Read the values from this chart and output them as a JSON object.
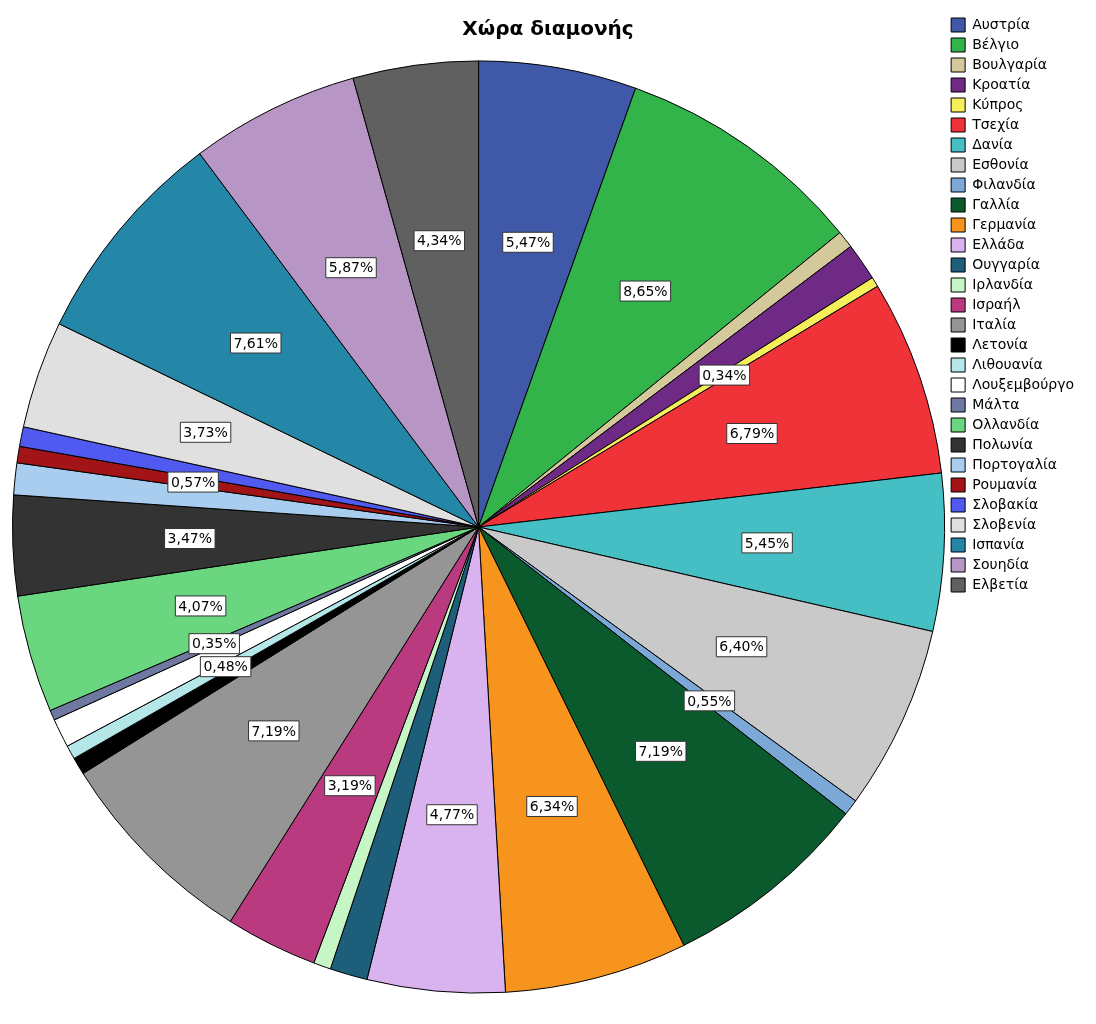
{
  "chart_data": {
    "type": "pie",
    "title": "Χώρα διαμονής",
    "categories": [
      "Αυστρία",
      "Βέλγιο",
      "Βουλγαρία",
      "Κροατία",
      "Κύπρος",
      "Τσεχία",
      "Δανία",
      "Εσθονία",
      "Φιλανδία",
      "Γαλλία",
      "Γερμανία",
      "Ελλάδα",
      "Ουγγαρία",
      "Ιρλανδία",
      "Ισραήλ",
      "Ιταλία",
      "Λετονία",
      "Λιθουανία",
      "Λουξεμβούργο",
      "Μάλτα",
      "Ολλανδία",
      "Πολωνία",
      "Πορτογαλία",
      "Ρουμανία",
      "Σλοβακία",
      "Σλοβενία",
      "Ισπανία",
      "Σουηδία",
      "Ελβετία"
    ],
    "values": [
      5.47,
      8.65,
      0.6,
      1.3,
      0.34,
      6.79,
      5.45,
      6.4,
      0.55,
      7.19,
      6.34,
      4.77,
      1.3,
      0.6,
      3.19,
      7.19,
      0.6,
      0.48,
      1.0,
      0.35,
      4.07,
      3.47,
      1.1,
      0.57,
      0.68,
      3.73,
      7.61,
      5.87,
      4.34
    ],
    "value_labels": [
      "5,47%",
      "8,65%",
      null,
      null,
      "0,34%",
      "6,79%",
      "5,45%",
      "6,40%",
      "0,55%",
      "7,19%",
      "6,34%",
      "4,77%",
      null,
      null,
      "3,19%",
      "7,19%",
      null,
      "0,48%",
      null,
      "0,35%",
      "4,07%",
      "3,47%",
      null,
      "0,57%",
      null,
      "3,73%",
      "7,61%",
      "5,87%",
      "4,34%"
    ],
    "colors": [
      "#3f58a8",
      "#33b44a",
      "#d4c99a",
      "#6f2a86",
      "#f6ef5c",
      "#ef3338",
      "#45bfc3",
      "#c9c9c9",
      "#7ca8d8",
      "#0b5a2e",
      "#f7941d",
      "#d9b3f0",
      "#1d5f7a",
      "#c6f5c6",
      "#b93a7e",
      "#959595",
      "#000000",
      "#b5e6e8",
      "#ffffff",
      "#6e78a0",
      "#6ad67f",
      "#333333",
      "#a9cdef",
      "#a31419",
      "#5059f0",
      "#e0e0e0",
      "#2487a8",
      "#b796c6",
      "#606060"
    ],
    "legend": "right"
  }
}
